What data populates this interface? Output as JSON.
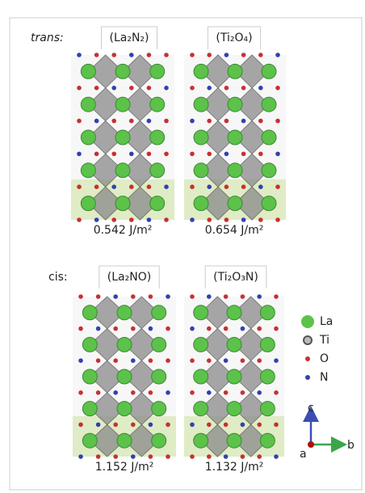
{
  "panels": [
    {
      "label": "trans:",
      "structures": [
        {
          "name": "(La₂N₂)",
          "energy": "0.542 J/m²"
        },
        {
          "name": "(Ti₂O₄)",
          "energy": "0.654 J/m²"
        }
      ]
    },
    {
      "label": "cis:",
      "structures": [
        {
          "name": "(La₂NO)",
          "energy": "1.152 J/m²"
        },
        {
          "name": "(Ti₂O₃N)",
          "energy": "1.132 J/m²"
        }
      ]
    }
  ],
  "legend": [
    "La",
    "Ti",
    "O",
    "N"
  ],
  "axes": {
    "c": "c",
    "a": "a",
    "b": "b"
  }
}
